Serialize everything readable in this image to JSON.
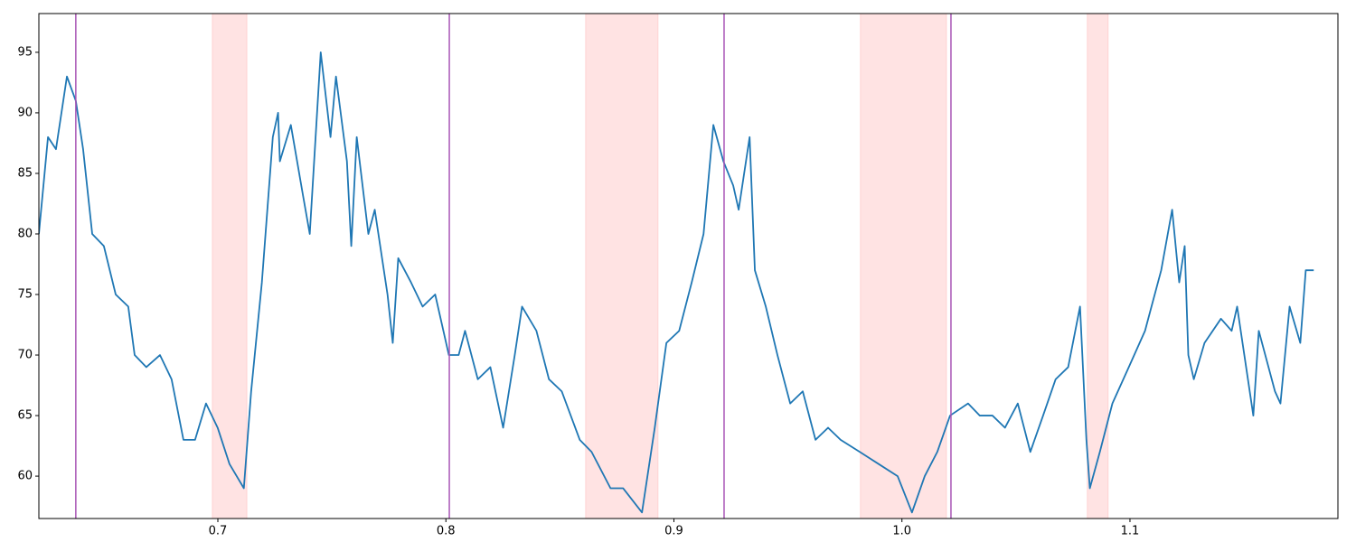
{
  "chart_data": {
    "type": "line",
    "x": [
      0.6215,
      0.6255,
      0.629,
      0.6338,
      0.6377,
      0.6409,
      0.6449,
      0.65,
      0.6552,
      0.6607,
      0.6635,
      0.6686,
      0.6746,
      0.6797,
      0.6849,
      0.69,
      0.6948,
      0.6999,
      0.7051,
      0.7114,
      0.7146,
      0.7193,
      0.7241,
      0.7264,
      0.7272,
      0.732,
      0.7375,
      0.7403,
      0.7451,
      0.7494,
      0.7518,
      0.7566,
      0.7585,
      0.7609,
      0.766,
      0.7688,
      0.7744,
      0.7767,
      0.7791,
      0.7847,
      0.7898,
      0.7953,
      0.8013,
      0.8056,
      0.8084,
      0.814,
      0.8195,
      0.8251,
      0.8302,
      0.8334,
      0.8397,
      0.8452,
      0.8508,
      0.8587,
      0.8639,
      0.8722,
      0.8777,
      0.886,
      0.8916,
      0.8967,
      0.9023,
      0.9078,
      0.913,
      0.9173,
      0.9217,
      0.926,
      0.9284,
      0.9332,
      0.9355,
      0.9403,
      0.9454,
      0.951,
      0.9565,
      0.9621,
      0.9676,
      0.9731,
      0.9815,
      0.9898,
      0.9981,
      1.0044,
      1.01,
      1.0155,
      1.0211,
      1.029,
      1.0341,
      1.0397,
      1.0452,
      1.0508,
      1.0563,
      1.0619,
      1.0674,
      1.0729,
      1.0781,
      1.0809,
      1.0824,
      1.0868,
      1.0923,
      1.0995,
      1.1066,
      1.1137,
      1.1185,
      1.1216,
      1.124,
      1.1256,
      1.128,
      1.1327,
      1.1399,
      1.1446,
      1.147,
      1.1541,
      1.1565,
      1.1636,
      1.166,
      1.17,
      1.1747,
      1.1771,
      1.1806
    ],
    "series": [
      {
        "color": "#1f77b4",
        "values": [
          80,
          88,
          87,
          93,
          91,
          87,
          80,
          79,
          75,
          74,
          70,
          69,
          70,
          68,
          63,
          63,
          66,
          64,
          61,
          59,
          67,
          76,
          88,
          90,
          86,
          89,
          83,
          80,
          95,
          88,
          93,
          86,
          79,
          88,
          80,
          82,
          75,
          71,
          78,
          76,
          74,
          75,
          70,
          70,
          72,
          68,
          69,
          64,
          70,
          74,
          72,
          68,
          67,
          63,
          62,
          59,
          59,
          57,
          64,
          71,
          72,
          76,
          80,
          89,
          86,
          84,
          82,
          88,
          77,
          74,
          70,
          66,
          67,
          63,
          64,
          63,
          62,
          61,
          60,
          57,
          60,
          62,
          65,
          66,
          65,
          65,
          64,
          66,
          62,
          65,
          68,
          69,
          74,
          63,
          59,
          62,
          66,
          69,
          72,
          77,
          82,
          76,
          79,
          70,
          68,
          71,
          73,
          72,
          74,
          65,
          72,
          67,
          66,
          74,
          71,
          77,
          77
        ]
      }
    ],
    "xlim": [
      0.6215,
      1.1912
    ],
    "ylim": [
      56.5,
      98.2
    ],
    "xticks": [
      0.7,
      0.8,
      0.9,
      {
        "value": 1,
        "label": "1.0"
      },
      1.1
    ],
    "yticks": [
      60,
      65,
      70,
      75,
      80,
      85,
      90,
      95
    ],
    "vlines": {
      "color": "#a855b5",
      "x": [
        0.6377,
        0.8015,
        0.922,
        1.0215
      ]
    },
    "spans": {
      "color": "#ffcccc",
      "ranges": [
        [
          0.6976,
          0.7127
        ],
        [
          0.8613,
          0.893
        ],
        [
          0.9818,
          1.0195
        ],
        [
          1.0813,
          1.0904
        ]
      ]
    }
  }
}
